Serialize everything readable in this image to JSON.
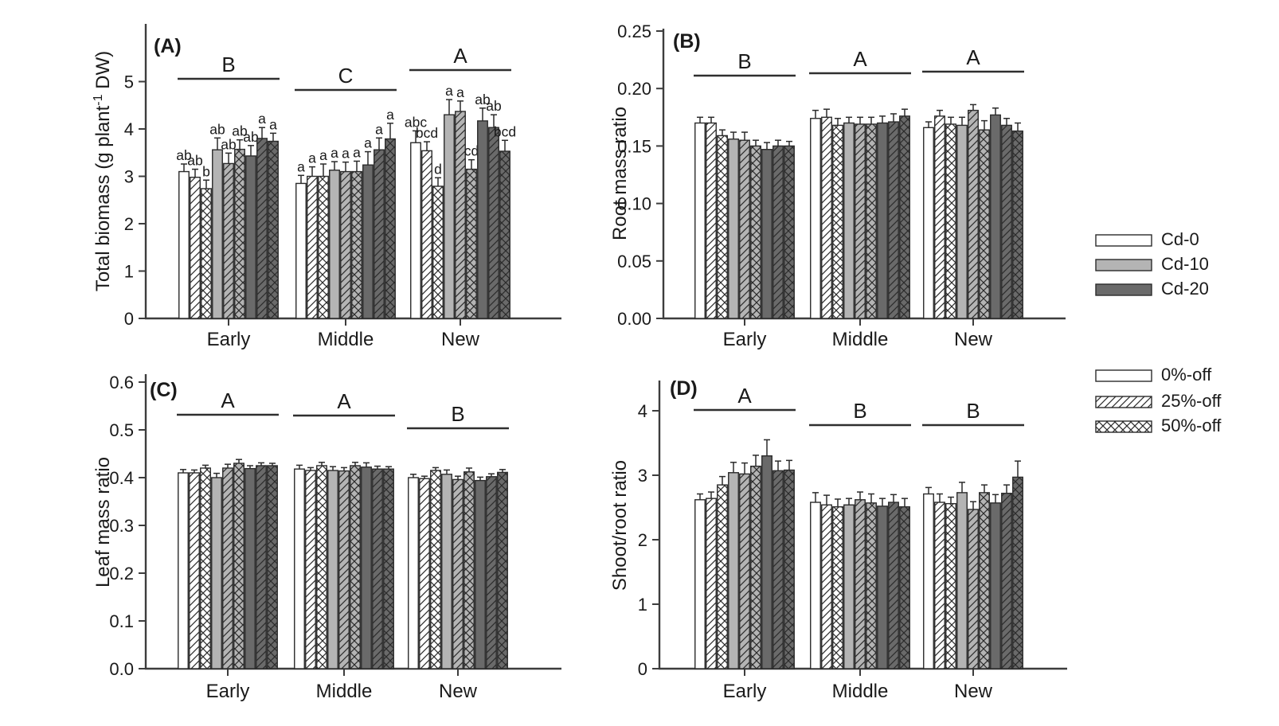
{
  "figure": {
    "description": "Four-panel bar chart figure of plant biomass allocation under cadmium and defoliation treatments",
    "colors": {
      "background": "#ffffff",
      "text": "#1a1a1a",
      "axis": "#3d3d3d",
      "bar_outline": "#2b2b2b",
      "cd0_fill": "#ffffff",
      "cd10_fill": "#b4b4b4",
      "cd20_fill": "#6a6a6a"
    },
    "bar_styles": [
      {
        "cd": "Cd-0",
        "defoliation": "0%-off",
        "fill": "#ffffff",
        "pattern": "plain"
      },
      {
        "cd": "Cd-0",
        "defoliation": "25%-off",
        "fill": "#ffffff",
        "pattern": "diagonal"
      },
      {
        "cd": "Cd-0",
        "defoliation": "50%-off",
        "fill": "#ffffff",
        "pattern": "crosshatch"
      },
      {
        "cd": "Cd-10",
        "defoliation": "0%-off",
        "fill": "#b4b4b4",
        "pattern": "plain"
      },
      {
        "cd": "Cd-10",
        "defoliation": "25%-off",
        "fill": "#b4b4b4",
        "pattern": "diagonal"
      },
      {
        "cd": "Cd-10",
        "defoliation": "50%-off",
        "fill": "#b4b4b4",
        "pattern": "crosshatch"
      },
      {
        "cd": "Cd-20",
        "defoliation": "0%-off",
        "fill": "#6a6a6a",
        "pattern": "plain"
      },
      {
        "cd": "Cd-20",
        "defoliation": "25%-off",
        "fill": "#6a6a6a",
        "pattern": "diagonal"
      },
      {
        "cd": "Cd-20",
        "defoliation": "50%-off",
        "fill": "#6a6a6a",
        "pattern": "crosshatch"
      }
    ],
    "legend_cd": {
      "items": [
        {
          "label": "Cd-0",
          "fill": "#ffffff",
          "pattern": "plain"
        },
        {
          "label": "Cd-10",
          "fill": "#b4b4b4",
          "pattern": "plain"
        },
        {
          "label": "Cd-20",
          "fill": "#6a6a6a",
          "pattern": "plain"
        }
      ]
    },
    "legend_defoliation": {
      "items": [
        {
          "label": "0%-off",
          "fill": "#ffffff",
          "pattern": "plain"
        },
        {
          "label": "25%-off",
          "fill": "#ffffff",
          "pattern": "diagonal"
        },
        {
          "label": "50%-off",
          "fill": "#ffffff",
          "pattern": "crosshatch"
        }
      ]
    }
  },
  "chart_data": [
    {
      "type": "bar",
      "id": "A",
      "title": "(A)",
      "ylabel": "Total biomass (g plant⁻¹ DW)",
      "ylabel_parts": {
        "pre": "Total biomass (g plant",
        "sup": "-1",
        "post": " DW)"
      },
      "categories": [
        "Early",
        "Middle",
        "New"
      ],
      "group_significance": [
        "B",
        "C",
        "A"
      ],
      "ylim": [
        0,
        5.9
      ],
      "yticks": [
        "0",
        "1",
        "2",
        "3",
        "4",
        "5"
      ],
      "ytick_values": [
        0,
        1,
        2,
        3,
        4,
        5
      ],
      "series": [
        {
          "name": "Cd-0 0%-off",
          "values": [
            3.1,
            2.85,
            3.71
          ],
          "errors": [
            0.16,
            0.17,
            0.25
          ],
          "letters": [
            "ab",
            "a",
            "abc"
          ]
        },
        {
          "name": "Cd-0 25%-off",
          "values": [
            2.98,
            3.0,
            3.54
          ],
          "errors": [
            0.17,
            0.2,
            0.19
          ],
          "letters": [
            "ab",
            "a",
            "bcd"
          ]
        },
        {
          "name": "Cd-0 50%-off",
          "values": [
            2.74,
            3.0,
            2.79
          ],
          "errors": [
            0.18,
            0.26,
            0.18
          ],
          "letters": [
            "b",
            "a",
            "d"
          ]
        },
        {
          "name": "Cd-10 0%-off",
          "values": [
            3.56,
            3.13,
            4.3
          ],
          "errors": [
            0.25,
            0.18,
            0.32
          ],
          "letters": [
            "ab",
            "a",
            "a"
          ]
        },
        {
          "name": "Cd-10 25%-off",
          "values": [
            3.27,
            3.1,
            4.37
          ],
          "errors": [
            0.22,
            0.2,
            0.22
          ],
          "letters": [
            "ab",
            "a",
            "a"
          ]
        },
        {
          "name": "Cd-10 50%-off",
          "values": [
            3.57,
            3.1,
            3.15
          ],
          "errors": [
            0.2,
            0.22,
            0.2
          ],
          "letters": [
            "ab",
            "a",
            "cd"
          ]
        },
        {
          "name": "Cd-20 0%-off",
          "values": [
            3.43,
            3.24,
            4.17
          ],
          "errors": [
            0.22,
            0.28,
            0.27
          ],
          "letters": [
            "ab",
            "a",
            "ab"
          ]
        },
        {
          "name": "Cd-20 25%-off",
          "values": [
            3.8,
            3.56,
            4.03
          ],
          "errors": [
            0.23,
            0.25,
            0.27
          ],
          "letters": [
            "a",
            "a",
            "ab"
          ]
        },
        {
          "name": "Cd-20 50%-off",
          "values": [
            3.74,
            3.79,
            3.53
          ],
          "errors": [
            0.17,
            0.33,
            0.23
          ],
          "letters": [
            "a",
            "a",
            "bcd"
          ]
        }
      ]
    },
    {
      "type": "bar",
      "id": "B",
      "title": "(B)",
      "ylabel": "Root mass ratio",
      "categories": [
        "Early",
        "Middle",
        "New"
      ],
      "group_significance": [
        "B",
        "A",
        "A"
      ],
      "ylim": [
        0,
        0.25
      ],
      "yticks": [
        "0.00",
        "0.05",
        "0.10",
        "0.15",
        "0.20",
        "0.25"
      ],
      "ytick_values": [
        0,
        0.05,
        0.1,
        0.15,
        0.2,
        0.25
      ],
      "series": [
        {
          "name": "Cd-0 0%-off",
          "values": [
            0.17,
            0.174,
            0.166
          ],
          "errors": [
            0.005,
            0.007,
            0.005
          ]
        },
        {
          "name": "Cd-0 25%-off",
          "values": [
            0.17,
            0.175,
            0.176
          ],
          "errors": [
            0.005,
            0.007,
            0.005
          ]
        },
        {
          "name": "Cd-0 50%-off",
          "values": [
            0.159,
            0.168,
            0.169
          ],
          "errors": [
            0.005,
            0.006,
            0.006
          ]
        },
        {
          "name": "Cd-10 0%-off",
          "values": [
            0.156,
            0.17,
            0.168
          ],
          "errors": [
            0.006,
            0.005,
            0.007
          ]
        },
        {
          "name": "Cd-10 25%-off",
          "values": [
            0.155,
            0.169,
            0.181
          ],
          "errors": [
            0.007,
            0.006,
            0.005
          ]
        },
        {
          "name": "Cd-10 50%-off",
          "values": [
            0.15,
            0.169,
            0.164
          ],
          "errors": [
            0.005,
            0.006,
            0.008
          ]
        },
        {
          "name": "Cd-20 0%-off",
          "values": [
            0.147,
            0.17,
            0.177
          ],
          "errors": [
            0.006,
            0.006,
            0.006
          ]
        },
        {
          "name": "Cd-20 25%-off",
          "values": [
            0.15,
            0.171,
            0.168
          ],
          "errors": [
            0.005,
            0.007,
            0.006
          ]
        },
        {
          "name": "Cd-20 50%-off",
          "values": [
            0.15,
            0.176,
            0.163
          ],
          "errors": [
            0.004,
            0.006,
            0.007
          ]
        }
      ]
    },
    {
      "type": "bar",
      "id": "C",
      "title": "(C)",
      "ylabel": "Leaf mass ratio",
      "categories": [
        "Early",
        "Middle",
        "New"
      ],
      "group_significance": [
        "A",
        "A",
        "B"
      ],
      "ylim": [
        0,
        0.6
      ],
      "yticks": [
        "0.0",
        "0.1",
        "0.2",
        "0.3",
        "0.4",
        "0.5",
        "0.6"
      ],
      "ytick_values": [
        0,
        0.1,
        0.2,
        0.3,
        0.4,
        0.5,
        0.6
      ],
      "series": [
        {
          "name": "Cd-0 0%-off",
          "values": [
            0.41,
            0.418,
            0.4
          ],
          "errors": [
            0.007,
            0.008,
            0.007
          ]
        },
        {
          "name": "Cd-0 25%-off",
          "values": [
            0.41,
            0.415,
            0.398
          ],
          "errors": [
            0.006,
            0.006,
            0.005
          ]
        },
        {
          "name": "Cd-0 50%-off",
          "values": [
            0.42,
            0.425,
            0.415
          ],
          "errors": [
            0.006,
            0.007,
            0.006
          ]
        },
        {
          "name": "Cd-10 0%-off",
          "values": [
            0.4,
            0.415,
            0.407
          ],
          "errors": [
            0.009,
            0.008,
            0.009
          ]
        },
        {
          "name": "Cd-10 25%-off",
          "values": [
            0.42,
            0.414,
            0.396
          ],
          "errors": [
            0.008,
            0.007,
            0.007
          ]
        },
        {
          "name": "Cd-10 50%-off",
          "values": [
            0.43,
            0.425,
            0.412
          ],
          "errors": [
            0.008,
            0.007,
            0.008
          ]
        },
        {
          "name": "Cd-20 0%-off",
          "values": [
            0.419,
            0.422,
            0.394
          ],
          "errors": [
            0.006,
            0.009,
            0.007
          ]
        },
        {
          "name": "Cd-20 25%-off",
          "values": [
            0.425,
            0.418,
            0.402
          ],
          "errors": [
            0.006,
            0.006,
            0.006
          ]
        },
        {
          "name": "Cd-20 50%-off",
          "values": [
            0.425,
            0.418,
            0.411
          ],
          "errors": [
            0.005,
            0.005,
            0.006
          ]
        }
      ]
    },
    {
      "type": "bar",
      "id": "D",
      "title": "(D)",
      "ylabel": "Shoot/root ratio",
      "categories": [
        "Early",
        "Middle",
        "New"
      ],
      "group_significance": [
        "A",
        "B",
        "B"
      ],
      "ylim": [
        0,
        4.5
      ],
      "yticks": [
        "0",
        "1",
        "2",
        "3",
        "4"
      ],
      "ytick_values": [
        0,
        1,
        2,
        3,
        4
      ],
      "series": [
        {
          "name": "Cd-0 0%-off",
          "values": [
            2.62,
            2.58,
            2.71
          ],
          "errors": [
            0.09,
            0.15,
            0.1
          ]
        },
        {
          "name": "Cd-0 25%-off",
          "values": [
            2.64,
            2.54,
            2.58
          ],
          "errors": [
            0.1,
            0.15,
            0.13
          ]
        },
        {
          "name": "Cd-0 50%-off",
          "values": [
            2.85,
            2.51,
            2.56
          ],
          "errors": [
            0.13,
            0.12,
            0.1
          ]
        },
        {
          "name": "Cd-10 0%-off",
          "values": [
            3.04,
            2.54,
            2.73
          ],
          "errors": [
            0.16,
            0.1,
            0.16
          ]
        },
        {
          "name": "Cd-10 25%-off",
          "values": [
            3.02,
            2.62,
            2.47
          ],
          "errors": [
            0.17,
            0.12,
            0.12
          ]
        },
        {
          "name": "Cd-10 50%-off",
          "values": [
            3.14,
            2.57,
            2.73
          ],
          "errors": [
            0.17,
            0.14,
            0.12
          ]
        },
        {
          "name": "Cd-20 0%-off",
          "values": [
            3.3,
            2.52,
            2.57
          ],
          "errors": [
            0.25,
            0.12,
            0.13
          ]
        },
        {
          "name": "Cd-20 25%-off",
          "values": [
            3.07,
            2.58,
            2.72
          ],
          "errors": [
            0.15,
            0.12,
            0.13
          ]
        },
        {
          "name": "Cd-20 50%-off",
          "values": [
            3.08,
            2.51,
            2.97
          ],
          "errors": [
            0.15,
            0.13,
            0.25
          ]
        }
      ]
    }
  ]
}
